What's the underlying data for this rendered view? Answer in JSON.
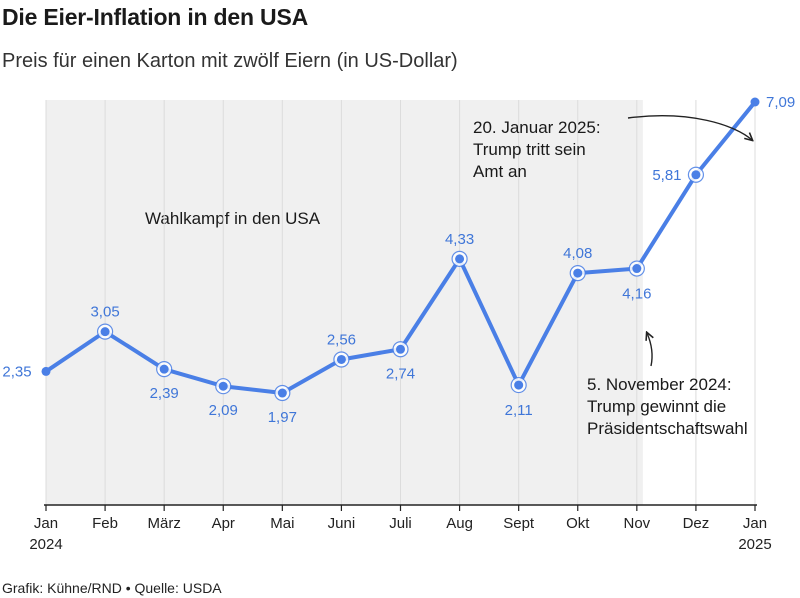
{
  "header": {
    "title": "Die Eier-Inflation in den USA",
    "subtitle": "Preis für einen Karton mit zwölf Eiern (in US-Dollar)"
  },
  "footer": {
    "credit": "Grafik: Kühne/RND • Quelle: USDA"
  },
  "colors": {
    "line": "#4a7fe6",
    "label": "#3f76d8",
    "shade": "#f0f0f0",
    "grid": "#dcdcdc",
    "axis": "#222222"
  },
  "chart_data": {
    "type": "line",
    "title": "Die Eier-Inflation in den USA",
    "subtitle": "Preis für einen Karton mit zwölf Eiern (in US-Dollar)",
    "xlabel": "",
    "ylabel": "",
    "categories": [
      [
        "Jan",
        "2024"
      ],
      [
        "Feb"
      ],
      [
        "März"
      ],
      [
        "Apr"
      ],
      [
        "Mai"
      ],
      [
        "Juni"
      ],
      [
        "Juli"
      ],
      [
        "Aug"
      ],
      [
        "Sept"
      ],
      [
        "Okt"
      ],
      [
        "Nov"
      ],
      [
        "Dez"
      ],
      [
        "Jan",
        "2025"
      ]
    ],
    "values": [
      2.35,
      3.05,
      2.39,
      2.09,
      1.97,
      2.56,
      2.74,
      4.33,
      2.11,
      4.08,
      4.16,
      5.81,
      7.09
    ],
    "value_labels": [
      "2,35",
      "3,05",
      "2,39",
      "2,09",
      "1,97",
      "2,56",
      "2,74",
      "4,33",
      "2,11",
      "4,08",
      "4,16",
      "5,81",
      "7,09"
    ],
    "ylim": [
      0,
      7.09
    ],
    "grid": "vertical",
    "shaded_period": {
      "from_index": 0,
      "to_index": 10,
      "label": "Wahlkampf in den USA"
    },
    "annotations": [
      {
        "text": [
          "20. Januar 2025:",
          "Trump tritt sein",
          "Amt an"
        ],
        "points_to_index": 12
      },
      {
        "text": [
          "5. November 2024:",
          "Trump gewinnt die",
          "Präsidentschaftswahl"
        ],
        "points_to_index": 10
      }
    ]
  }
}
